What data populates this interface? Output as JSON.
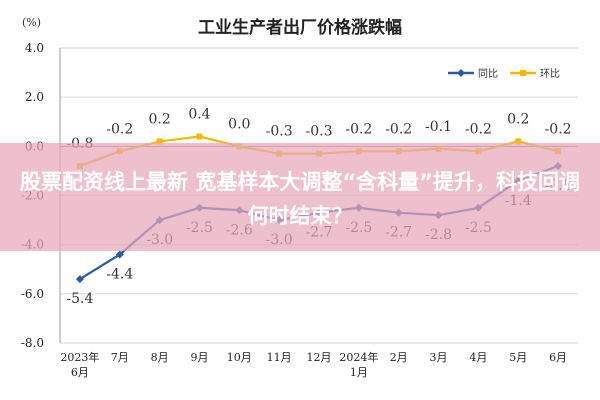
{
  "chart_data": {
    "type": "line",
    "title": "工业生产者出厂价格涨跌幅",
    "unit": "(%)",
    "categories": [
      "2023年\n6月",
      "7月",
      "8月",
      "9月",
      "10月",
      "11月",
      "12月",
      "2024年\n1月",
      "2月",
      "3月",
      "4月",
      "5月",
      "6月"
    ],
    "y_ticks": [
      "4.0",
      "2.0",
      "0.0",
      "-2.0",
      "-4.0",
      "-6.0",
      "-8.0"
    ],
    "ylim": [
      -8,
      4
    ],
    "grid": true,
    "legend_position": "top-right",
    "series": [
      {
        "name": "同比",
        "color": "#2b5aa8",
        "values": [
          -5.4,
          -4.4,
          -3.0,
          -2.5,
          -2.6,
          -3.0,
          -2.7,
          -2.5,
          -2.7,
          -2.8,
          -2.5,
          -1.4,
          -0.8
        ],
        "labels": [
          "-5.4",
          "-4.4",
          "-3.0",
          "-2.5",
          "-2.6",
          "-3.0",
          "-2.7",
          "-2.5",
          "-2.7",
          "-2.8",
          "-2.5",
          "-1.4",
          "-0.8"
        ]
      },
      {
        "name": "环比",
        "color": "#f5b800",
        "values": [
          -0.8,
          -0.2,
          0.2,
          0.4,
          0.0,
          -0.3,
          -0.3,
          -0.2,
          -0.2,
          -0.1,
          -0.2,
          0.2,
          -0.2
        ],
        "labels": [
          "-0.8",
          "-0.2",
          "0.2",
          "0.4",
          "0.0",
          "-0.3",
          "-0.3",
          "-0.2",
          "-0.2",
          "-0.1",
          "-0.2",
          "0.2",
          "-0.2"
        ]
      }
    ]
  },
  "banner": {
    "text": "股票配资线上最新 宽基样本大调整“含科量”提升，科技回调何时结束？"
  }
}
